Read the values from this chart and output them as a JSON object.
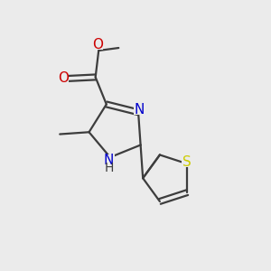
{
  "background_color": "#ebebeb",
  "bond_color": "#3d3d3d",
  "bond_width": 1.6,
  "atom_colors": {
    "N": "#0000cc",
    "O": "#cc0000",
    "S": "#cccc00",
    "C": "#3d3d3d",
    "H": "#3d3d3d"
  },
  "font_size_atom": 11,
  "font_size_ch3": 9.5
}
